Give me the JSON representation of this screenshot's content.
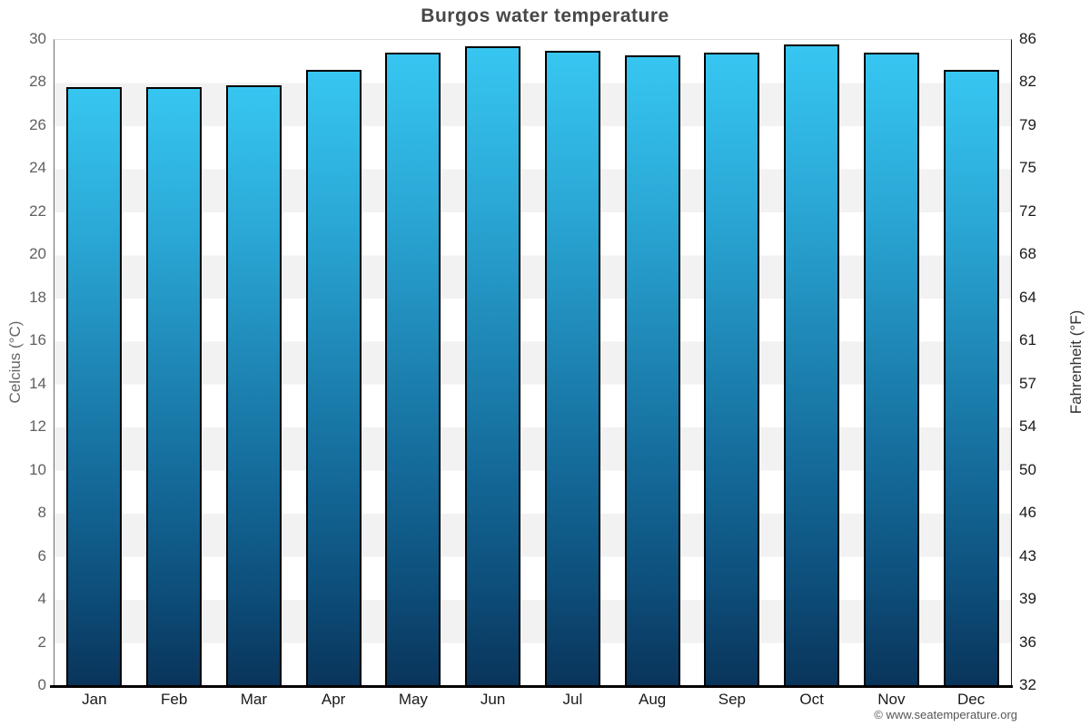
{
  "header": {
    "title": "Burgos water temperature"
  },
  "footer": {
    "copyright": "© www.seatemperature.org"
  },
  "chart_data": {
    "type": "bar",
    "title": "Burgos water temperature",
    "categories": [
      "Jan",
      "Feb",
      "Mar",
      "Apr",
      "May",
      "Jun",
      "Jul",
      "Aug",
      "Sep",
      "Oct",
      "Nov",
      "Dec"
    ],
    "values": [
      27.8,
      27.8,
      27.9,
      28.6,
      29.4,
      29.7,
      29.5,
      29.3,
      29.4,
      29.8,
      29.4,
      28.6
    ],
    "series_name": "water temperature (°C)",
    "ylabel_left": "Celcius (°C)",
    "ylabel_right": "Fahrenheit (°F)",
    "yticks_celsius": [
      0,
      2,
      4,
      6,
      8,
      10,
      12,
      14,
      16,
      18,
      20,
      22,
      24,
      26,
      28,
      30
    ],
    "yticks_fahrenheit": [
      32,
      36,
      39,
      43,
      46,
      50,
      54,
      57,
      61,
      64,
      68,
      72,
      75,
      79,
      82,
      86
    ],
    "ylim": [
      0,
      30
    ],
    "ylim_fahrenheit": [
      32,
      86
    ],
    "grid": "alternating horizontal bands every 2°C",
    "legend": "none",
    "colors": {
      "bar_gradient_top": "#37c6f1",
      "bar_gradient_bottom": "#09345a",
      "bar_border": "#000000",
      "band_alt": "#f2f2f2",
      "band_base": "#ffffff",
      "bottom_axis_line": "#000000",
      "title_text": "#474747",
      "tick_text_left": "#606060",
      "tick_text_right": "#1a1a1a",
      "footer_text": "#555555"
    }
  }
}
